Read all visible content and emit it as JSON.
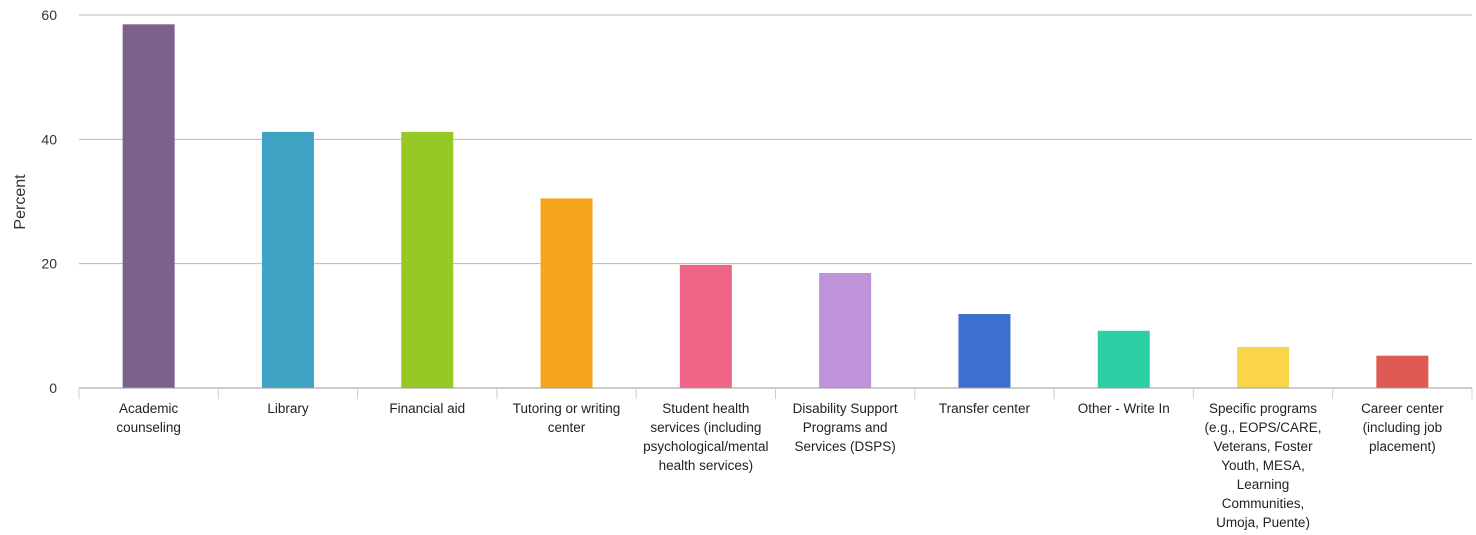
{
  "chart_data": {
    "type": "bar",
    "title": "",
    "xlabel": "",
    "ylabel": "Percent",
    "ylim": [
      0,
      60
    ],
    "yticks": [
      0,
      20,
      40,
      60
    ],
    "grid": true,
    "legend": "none",
    "categories": [
      [
        "Academic",
        "counseling"
      ],
      [
        "Library"
      ],
      [
        "Financial aid"
      ],
      [
        "Tutoring or writing",
        "center"
      ],
      [
        "Student health",
        "services (including",
        "psychological/mental",
        "health services)"
      ],
      [
        "Disability Support",
        "Programs and",
        "Services (DSPS)"
      ],
      [
        "Transfer center"
      ],
      [
        "Other - Write In"
      ],
      [
        "Specific programs",
        "(e.g., EOPS/CARE,",
        "Veterans, Foster",
        "Youth, MESA,",
        "Learning",
        "Communities,",
        "Umoja, Puente)"
      ],
      [
        "Career center",
        "(including job",
        "placement)"
      ]
    ],
    "values": [
      58.5,
      41.2,
      41.2,
      30.5,
      19.8,
      18.5,
      11.9,
      9.2,
      6.6,
      5.2
    ],
    "colors": [
      "#7b618c",
      "#3fa3c4",
      "#96c826",
      "#f5a51d",
      "#f06586",
      "#be93da",
      "#3c6fcf",
      "#2bcfa4",
      "#fad54a",
      "#e05a55"
    ],
    "gridline_color": "#b8b8b8"
  }
}
